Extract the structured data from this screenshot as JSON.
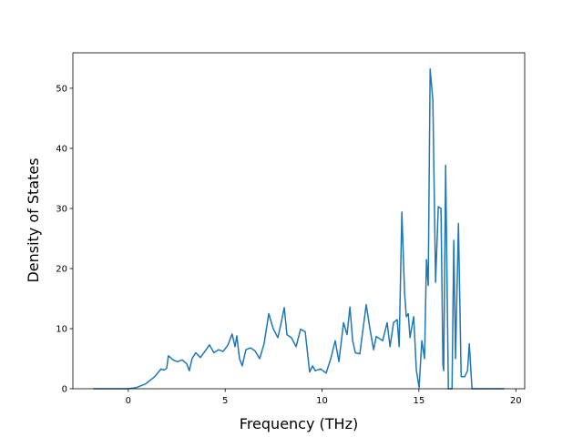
{
  "chart_data": {
    "type": "line",
    "xlabel": "Frequency (THz)",
    "ylabel": "Density of States",
    "xlim": [
      -2.86,
      20.46
    ],
    "ylim": [
      0,
      55.9
    ],
    "xticks": [
      0,
      5,
      10,
      15,
      20
    ],
    "yticks": [
      0,
      10,
      20,
      30,
      40,
      50
    ],
    "series": [
      {
        "color": "#1f77b4",
        "x": [
          -1.8,
          -1,
          -0.5,
          0,
          0.42,
          0.89,
          1.36,
          1.69,
          1.84,
          1.98,
          2.07,
          2.31,
          2.54,
          2.78,
          3.01,
          3.15,
          3.29,
          3.48,
          3.72,
          3.95,
          4.19,
          4.42,
          4.66,
          4.89,
          5.13,
          5.36,
          5.51,
          5.6,
          5.74,
          5.88,
          6.07,
          6.31,
          6.54,
          6.78,
          7.01,
          7.25,
          7.48,
          7.72,
          7.86,
          8.05,
          8.19,
          8.42,
          8.66,
          8.89,
          9.13,
          9.36,
          9.51,
          9.65,
          9.93,
          10.21,
          10.45,
          10.68,
          10.87,
          11.11,
          11.29,
          11.44,
          11.58,
          11.72,
          11.95,
          12.28,
          12.47,
          12.66,
          12.8,
          13.13,
          13.36,
          13.51,
          13.69,
          13.88,
          13.98,
          14.12,
          14.26,
          14.35,
          14.45,
          14.54,
          14.73,
          14.87,
          15.01,
          15.15,
          15.29,
          15.39,
          15.48,
          15.58,
          15.72,
          15.86,
          16.0,
          16.14,
          16.24,
          16.28,
          16.38,
          16.52,
          16.71,
          16.8,
          16.89,
          17.04,
          17.18,
          17.36,
          17.51,
          17.6,
          17.74,
          19.4
        ],
        "values": [
          0,
          0,
          0,
          0,
          0.2,
          0.8,
          2.0,
          3.3,
          3.1,
          3.4,
          5.5,
          4.8,
          4.5,
          4.8,
          4.2,
          3.0,
          5.0,
          6.0,
          5.2,
          6.2,
          7.3,
          6.0,
          6.5,
          6.2,
          7.2,
          9.1,
          7.0,
          8.8,
          5.0,
          3.8,
          6.5,
          6.8,
          6.3,
          5.0,
          7.5,
          12.5,
          10.0,
          8.5,
          10.5,
          13.5,
          9.0,
          8.5,
          7.0,
          9.9,
          9.5,
          2.8,
          3.8,
          3.0,
          3.3,
          2.6,
          5.0,
          8.0,
          4.5,
          11.0,
          9.0,
          13.6,
          8.0,
          6.0,
          5.8,
          14.0,
          10.0,
          6.5,
          8.7,
          8.0,
          11.0,
          7.0,
          11.0,
          11.5,
          7.0,
          29.4,
          16.0,
          12.0,
          12.5,
          8.5,
          12.0,
          3.0,
          0.2,
          8.0,
          5.0,
          21.5,
          17.2,
          53.2,
          48.0,
          17.7,
          30.3,
          30.0,
          4.0,
          3.0,
          37.2,
          0,
          0,
          24.7,
          5.0,
          27.5,
          2.0,
          2.0,
          3.0,
          7.5,
          0,
          0
        ]
      }
    ]
  }
}
